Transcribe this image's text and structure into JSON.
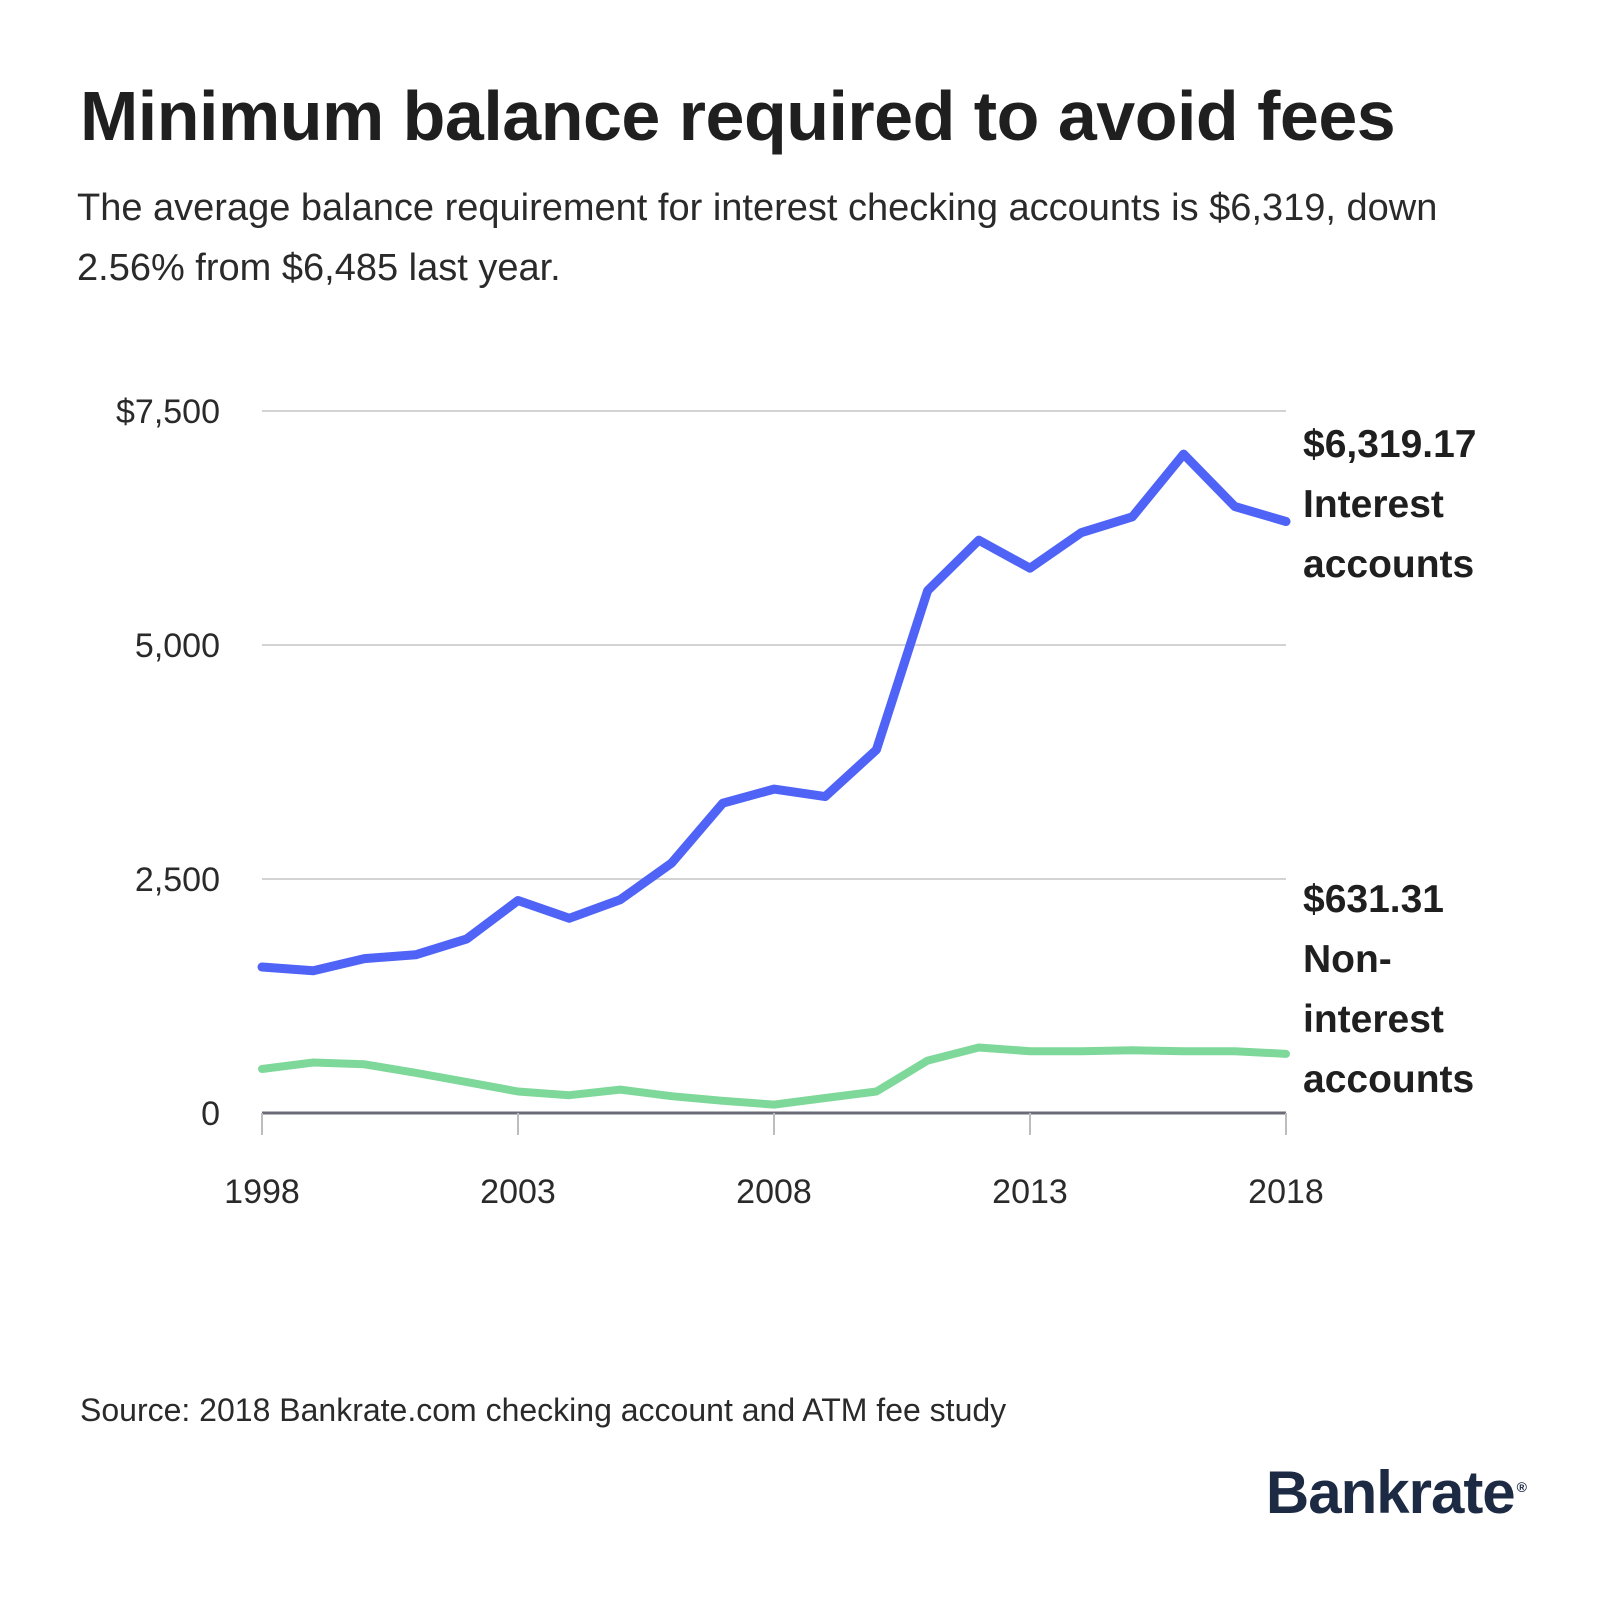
{
  "header": {
    "title": "Minimum balance required to avoid fees",
    "subtitle": "The average balance requirement for interest checking accounts is $6,319, down 2.56% from $6,485 last year."
  },
  "chart_data": {
    "type": "line",
    "x": [
      1998,
      1999,
      2000,
      2001,
      2002,
      2003,
      2004,
      2005,
      2006,
      2007,
      2008,
      2009,
      2010,
      2011,
      2012,
      2013,
      2014,
      2015,
      2016,
      2017,
      2018
    ],
    "series": [
      {
        "name": "Interest accounts",
        "color": "#4f63f7",
        "values": [
          1560,
          1520,
          1650,
          1690,
          1860,
          2270,
          2080,
          2280,
          2670,
          3310,
          3460,
          3380,
          3880,
          5580,
          6120,
          5820,
          6200,
          6370,
          7040,
          6480,
          6319.17
        ],
        "end_value_label": "$6,319.17",
        "label_lines": [
          "Interest",
          "accounts"
        ]
      },
      {
        "name": "Non-interest accounts",
        "color": "#7ed89a",
        "values": [
          470,
          540,
          520,
          430,
          330,
          230,
          190,
          250,
          180,
          130,
          90,
          160,
          230,
          560,
          700,
          660,
          660,
          670,
          660,
          660,
          631.31
        ],
        "end_value_label": "$631.31",
        "label_lines": [
          "Non-",
          "interest",
          "accounts"
        ]
      }
    ],
    "ylim": [
      0,
      7500
    ],
    "y_ticks": [
      0,
      2500,
      5000,
      7500
    ],
    "y_tick_labels": [
      "0",
      "2,500",
      "5,000",
      "$7,500"
    ],
    "x_ticks": [
      1998,
      2003,
      2008,
      2013,
      2018
    ],
    "x_tick_labels": [
      "1998",
      "2003",
      "2008",
      "2013",
      "2018"
    ],
    "grid": true,
    "title": "Minimum balance required to avoid fees",
    "xlabel": "",
    "ylabel": ""
  },
  "footer": {
    "source": "Source: 2018 Bankrate.com checking account and ATM fee study",
    "logo_text": "Bankrate",
    "logo_reg": "®"
  }
}
